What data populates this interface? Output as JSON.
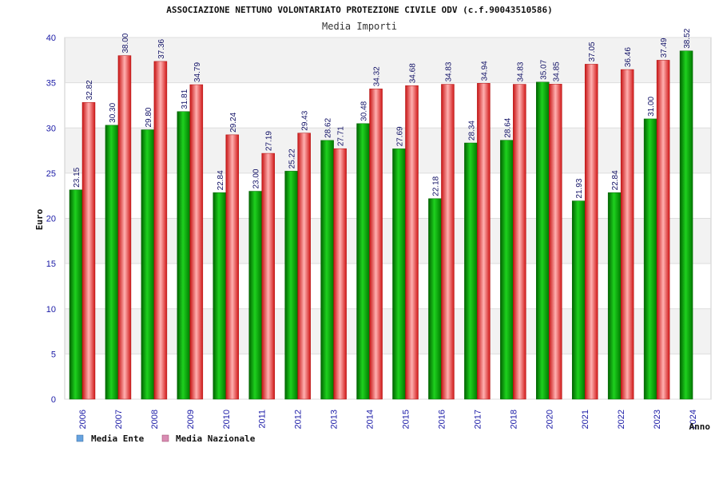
{
  "chart_data": {
    "type": "bar",
    "title": "ASSOCIAZIONE NETTUNO VOLONTARIATO PROTEZIONE CIVILE ODV (c.f.90043510586)",
    "subtitle": "Media Importi",
    "xlabel": "Anno",
    "ylabel": "Euro",
    "ylim": [
      0,
      40
    ],
    "yticks": [
      0,
      5,
      10,
      15,
      20,
      25,
      30,
      35,
      40
    ],
    "categories": [
      "2006",
      "2007",
      "2008",
      "2009",
      "2010",
      "2011",
      "2012",
      "2013",
      "2014",
      "2015",
      "2016",
      "2017",
      "2018",
      "2020",
      "2021",
      "2022",
      "2023",
      "2024"
    ],
    "series": [
      {
        "name": "Media Ente",
        "color": "#00aa00",
        "legend_color": "#66a3e0",
        "values": [
          23.15,
          30.3,
          29.8,
          31.81,
          22.84,
          23.0,
          25.22,
          28.62,
          30.48,
          27.69,
          22.18,
          28.34,
          28.64,
          35.07,
          21.93,
          22.84,
          31.0,
          38.52
        ],
        "labels": [
          "23.15",
          "30.30",
          "29.80",
          "31.81",
          "22.84",
          "23.00",
          "25.22",
          "28.62",
          "30.48",
          "27.69",
          "22.18",
          "28.34",
          "28.64",
          "35.07",
          "21.93",
          "22.84",
          "31.00",
          "38.52"
        ]
      },
      {
        "name": "Media Nazionale",
        "color": "#ee2222",
        "legend_color": "#d98cb3",
        "values": [
          32.82,
          38.0,
          37.36,
          34.79,
          29.24,
          27.19,
          29.43,
          27.71,
          34.32,
          34.68,
          34.83,
          34.94,
          34.83,
          34.85,
          37.05,
          36.46,
          37.49,
          null
        ],
        "labels": [
          "32.82",
          "38.00",
          "37.36",
          "34.79",
          "29.24",
          "27.19",
          "29.43",
          "27.71",
          "34.32",
          "34.68",
          "34.83",
          "34.94",
          "34.83",
          "34.85",
          "37.05",
          "36.46",
          "37.49",
          null
        ]
      }
    ],
    "legend_position": "bottom-left",
    "grid": true
  }
}
